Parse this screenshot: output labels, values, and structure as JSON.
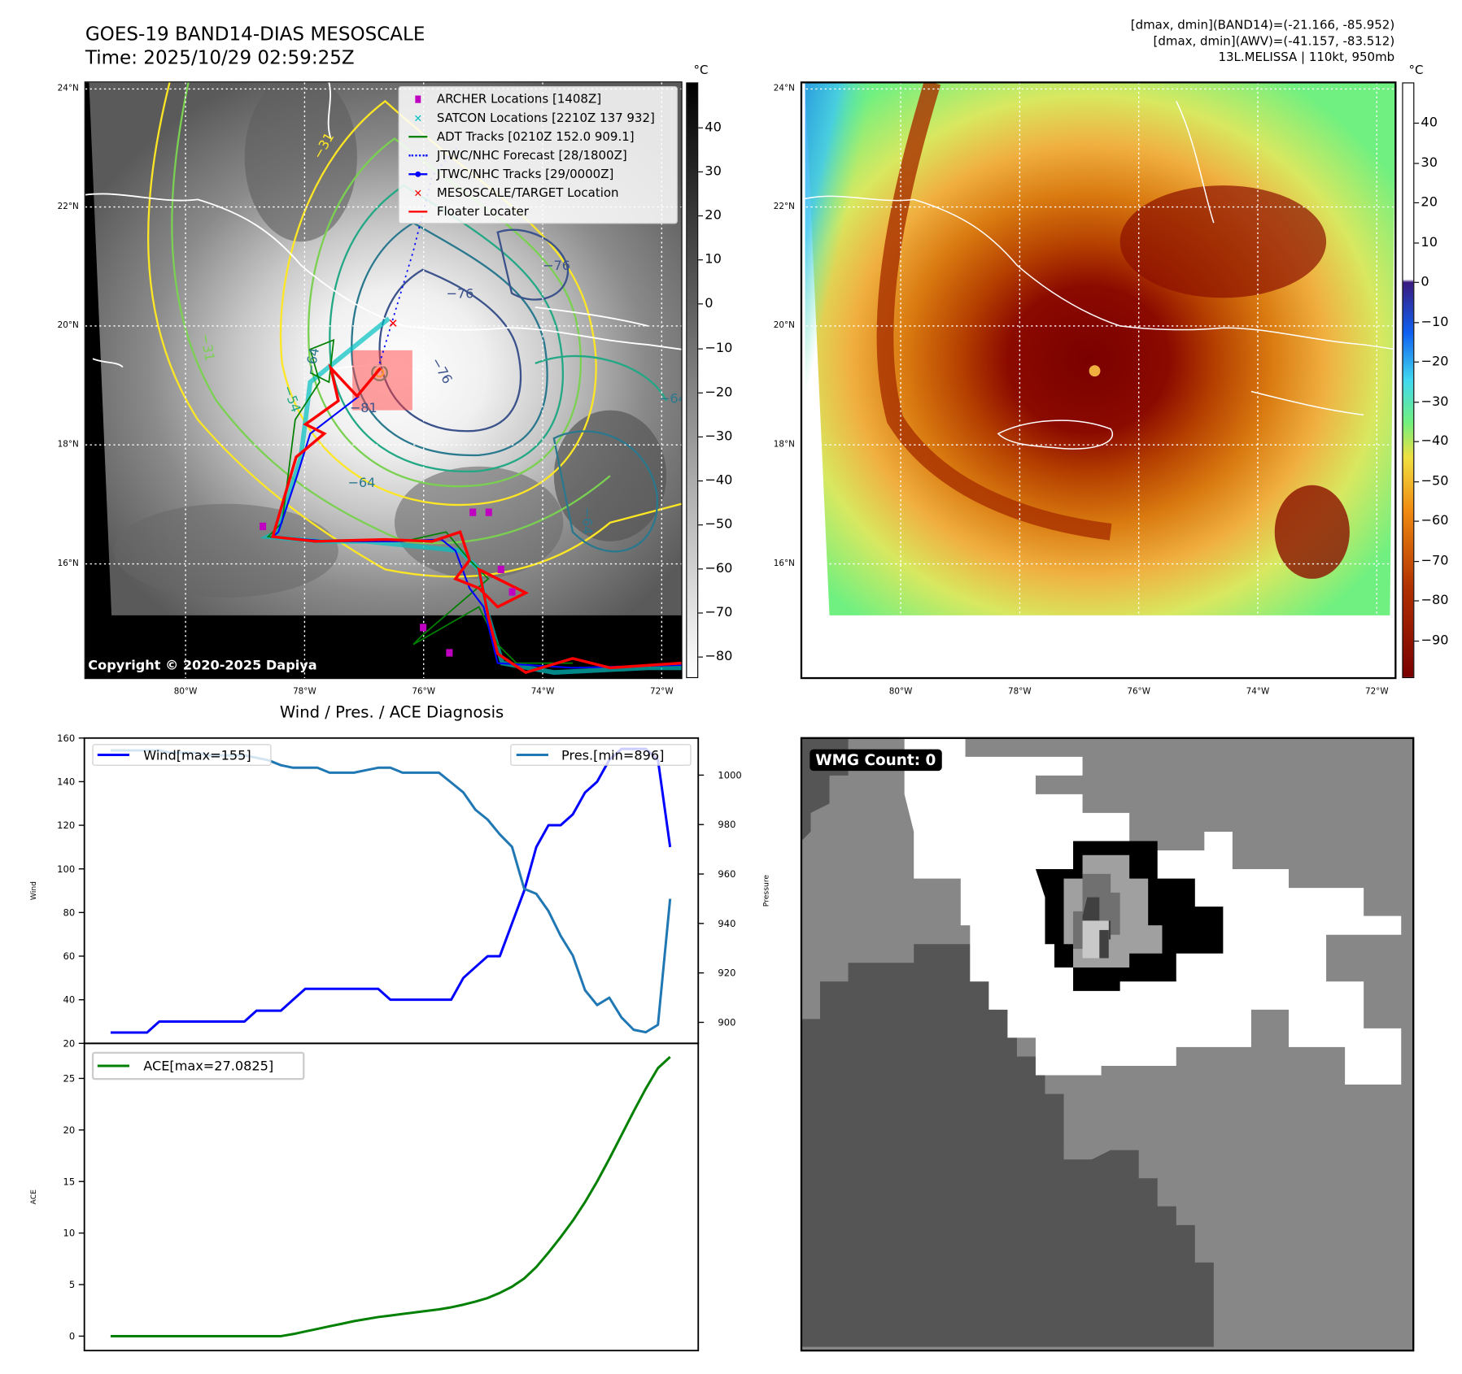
{
  "header": {
    "title_line1": "GOES-19 BAND14-DIAS MESOSCALE",
    "title_line2": "Time: 2025/10/29 02:59:25Z",
    "info_line1": "[dmax, dmin](BAND14)=(-21.166, -85.952)",
    "info_line2": "[dmax, dmin](AWV)=(-41.157, -83.512)",
    "info_line3": "13L.MELISSA | 110kt, 950mb"
  },
  "map_left": {
    "lat_labels": [
      "24°N",
      "22°N",
      "20°N",
      "18°N",
      "16°N"
    ],
    "lon_labels": [
      "80°W",
      "78°W",
      "76°W",
      "74°W",
      "72°W"
    ],
    "colorbar_unit": "°C",
    "colorbar_ticks": [
      "40",
      "30",
      "20",
      "10",
      "0",
      "−10",
      "−20",
      "−30",
      "−40",
      "−50",
      "−60",
      "−70",
      "−80"
    ],
    "contour_labels": [
      "−76",
      "−76",
      "−64",
      "−64",
      "−81",
      "−54",
      "−31",
      "−31",
      "−64",
      "−64",
      "−76"
    ],
    "copyright": "Copyright © 2020-2025 Dapiya",
    "legend": [
      {
        "label": "ARCHER Locations [1408Z]",
        "color": "#c000c0"
      },
      {
        "label": "SATCON Locations [2210Z 137 932]",
        "color": "#00c0c0"
      },
      {
        "label": "ADT Tracks [0210Z 152.0 909.1]",
        "color": "#008000"
      },
      {
        "label": "JTWC/NHC Forecast [28/1800Z]",
        "color": "#0000ff"
      },
      {
        "label": "JTWC/NHC Tracks [29/0000Z]",
        "color": "#0000ff"
      },
      {
        "label": "MESOSCALE/TARGET Location",
        "color": "#ff0000"
      },
      {
        "label": "Floater Locater",
        "color": "#ff0000"
      }
    ]
  },
  "map_right": {
    "lat_labels": [
      "24°N",
      "22°N",
      "20°N",
      "18°N",
      "16°N"
    ],
    "lon_labels": [
      "80°W",
      "78°W",
      "76°W",
      "74°W",
      "72°W"
    ],
    "colorbar_unit": "°C",
    "colorbar_ticks": [
      "40",
      "30",
      "20",
      "10",
      "0",
      "−10",
      "−20",
      "−30",
      "−40",
      "−50",
      "−60",
      "−70",
      "−80",
      "−90"
    ]
  },
  "wmg": {
    "label": "WMG Count: 0"
  },
  "chart_data": {
    "type": "line",
    "title": "Wind / Pres. / ACE Diagnosis",
    "panels": [
      {
        "ylabel_left": "Wind",
        "ylabel_right": "Pressure",
        "ylim_left": [
          20,
          160
        ],
        "ylim_right": [
          891.5,
          1015
        ],
        "yticks_left": [
          20,
          40,
          60,
          80,
          100,
          120,
          140,
          160
        ],
        "yticks_right": [
          900,
          920,
          940,
          960,
          980,
          1000
        ],
        "series": [
          {
            "name": "Wind[max=155]",
            "axis": "left",
            "color": "#0000ff",
            "values": [
              25,
              25,
              25,
              25,
              30,
              30,
              30,
              30,
              30,
              30,
              30,
              30,
              35,
              35,
              35,
              40,
              45,
              45,
              45,
              45,
              45,
              45,
              45,
              40,
              40,
              40,
              40,
              40,
              40,
              50,
              55,
              60,
              60,
              75,
              90,
              110,
              120,
              120,
              125,
              135,
              140,
              150,
              155,
              155,
              155,
              150,
              110
            ]
          },
          {
            "name": "Pres.[min=896]",
            "axis": "right",
            "color": "#1f77b4",
            "values": [
              1010,
              1010,
              1010,
              1010,
              1010,
              1009,
              1009,
              1009,
              1008,
              1008,
              1008,
              1008,
              1007,
              1006,
              1004,
              1003,
              1003,
              1003,
              1001,
              1001,
              1001,
              1002,
              1003,
              1003,
              1001,
              1001,
              1001,
              1001,
              997,
              993,
              986,
              982,
              976,
              971,
              954,
              952,
              945,
              935,
              927,
              913,
              907,
              910,
              902,
              897,
              896,
              899,
              950
            ]
          }
        ]
      },
      {
        "ylabel_left": "ACE",
        "ylim_left": [
          -1.4,
          28.4
        ],
        "yticks_left": [
          0,
          5,
          10,
          15,
          20,
          25
        ],
        "series": [
          {
            "name": "ACE[max=27.0825]",
            "axis": "left",
            "color": "#008000",
            "values": [
              0,
              0,
              0,
              0,
              0,
              0,
              0,
              0,
              0,
              0,
              0,
              0,
              0,
              0,
              0,
              0.2,
              0.45,
              0.7,
              0.95,
              1.2,
              1.45,
              1.65,
              1.85,
              2.0,
              2.15,
              2.3,
              2.45,
              2.6,
              2.8,
              3.05,
              3.35,
              3.7,
              4.2,
              4.8,
              5.6,
              6.7,
              8.1,
              9.6,
              11.2,
              13.0,
              15.0,
              17.2,
              19.5,
              21.8,
              24.0,
              26.0,
              27.08
            ]
          }
        ]
      }
    ]
  }
}
